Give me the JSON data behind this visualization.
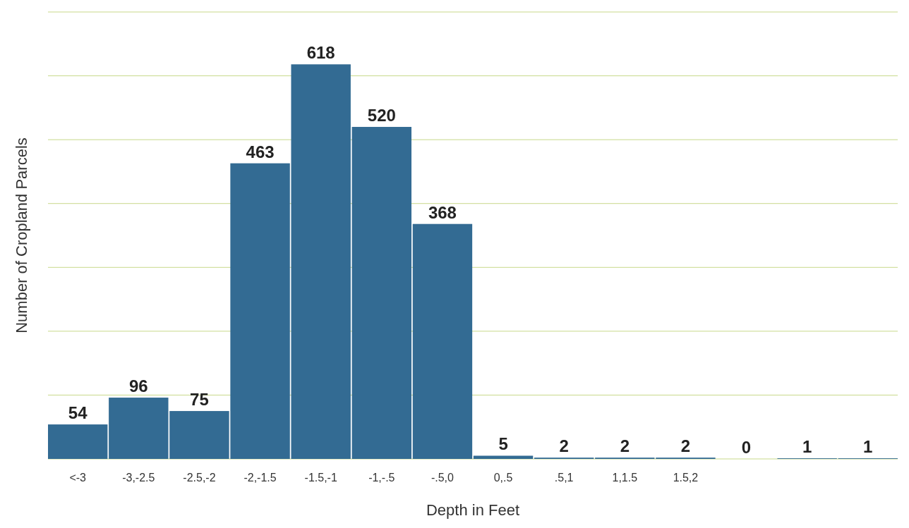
{
  "chart_data": {
    "type": "bar",
    "xlabel": "Depth in Feet",
    "ylabel": "Number of Cropland Parcels",
    "categories": [
      "<-3",
      "-3,-2.5",
      "-2.5,-2",
      "-2,-1.5",
      "-1.5,-1",
      "-1,-.5",
      "-.5,0",
      "0,.5",
      ".5,1",
      "1,1.5",
      "1.5,2",
      null,
      null,
      null
    ],
    "values": [
      54,
      96,
      75,
      463,
      618,
      520,
      368,
      5,
      2,
      2,
      2,
      0,
      1,
      1
    ],
    "color": "#336b93",
    "ylim": [
      0,
      700
    ],
    "yticks": [
      {
        "value": 0,
        "label": null
      },
      {
        "value": 100,
        "label": null
      },
      {
        "value": 200,
        "label": null
      },
      {
        "value": 300,
        "label": null
      },
      {
        "value": 400,
        "label": null
      },
      {
        "value": 500,
        "label": null
      },
      {
        "value": 600,
        "label": null
      },
      {
        "value": 700,
        "label": null
      }
    ],
    "grid": "y",
    "data_labels": true
  }
}
